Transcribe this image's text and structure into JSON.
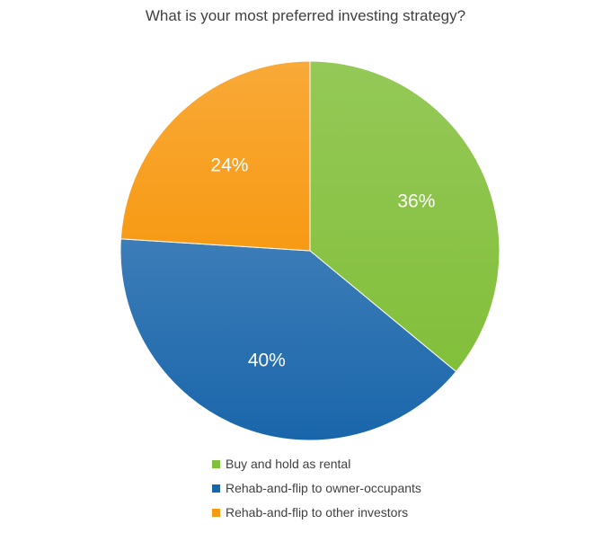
{
  "chart_data": {
    "type": "pie",
    "title": "What is your most preferred investing strategy?",
    "categories": [
      "Buy and hold as rental",
      "Rehab-and-flip to owner-occupants",
      "Rehab-and-flip to other investors"
    ],
    "values": [
      36,
      40,
      24
    ],
    "labels": [
      "36%",
      "40%",
      "24%"
    ],
    "colors": [
      "#82bf3a",
      "#1a66ab",
      "#f79a14"
    ],
    "legend_position": "bottom"
  }
}
